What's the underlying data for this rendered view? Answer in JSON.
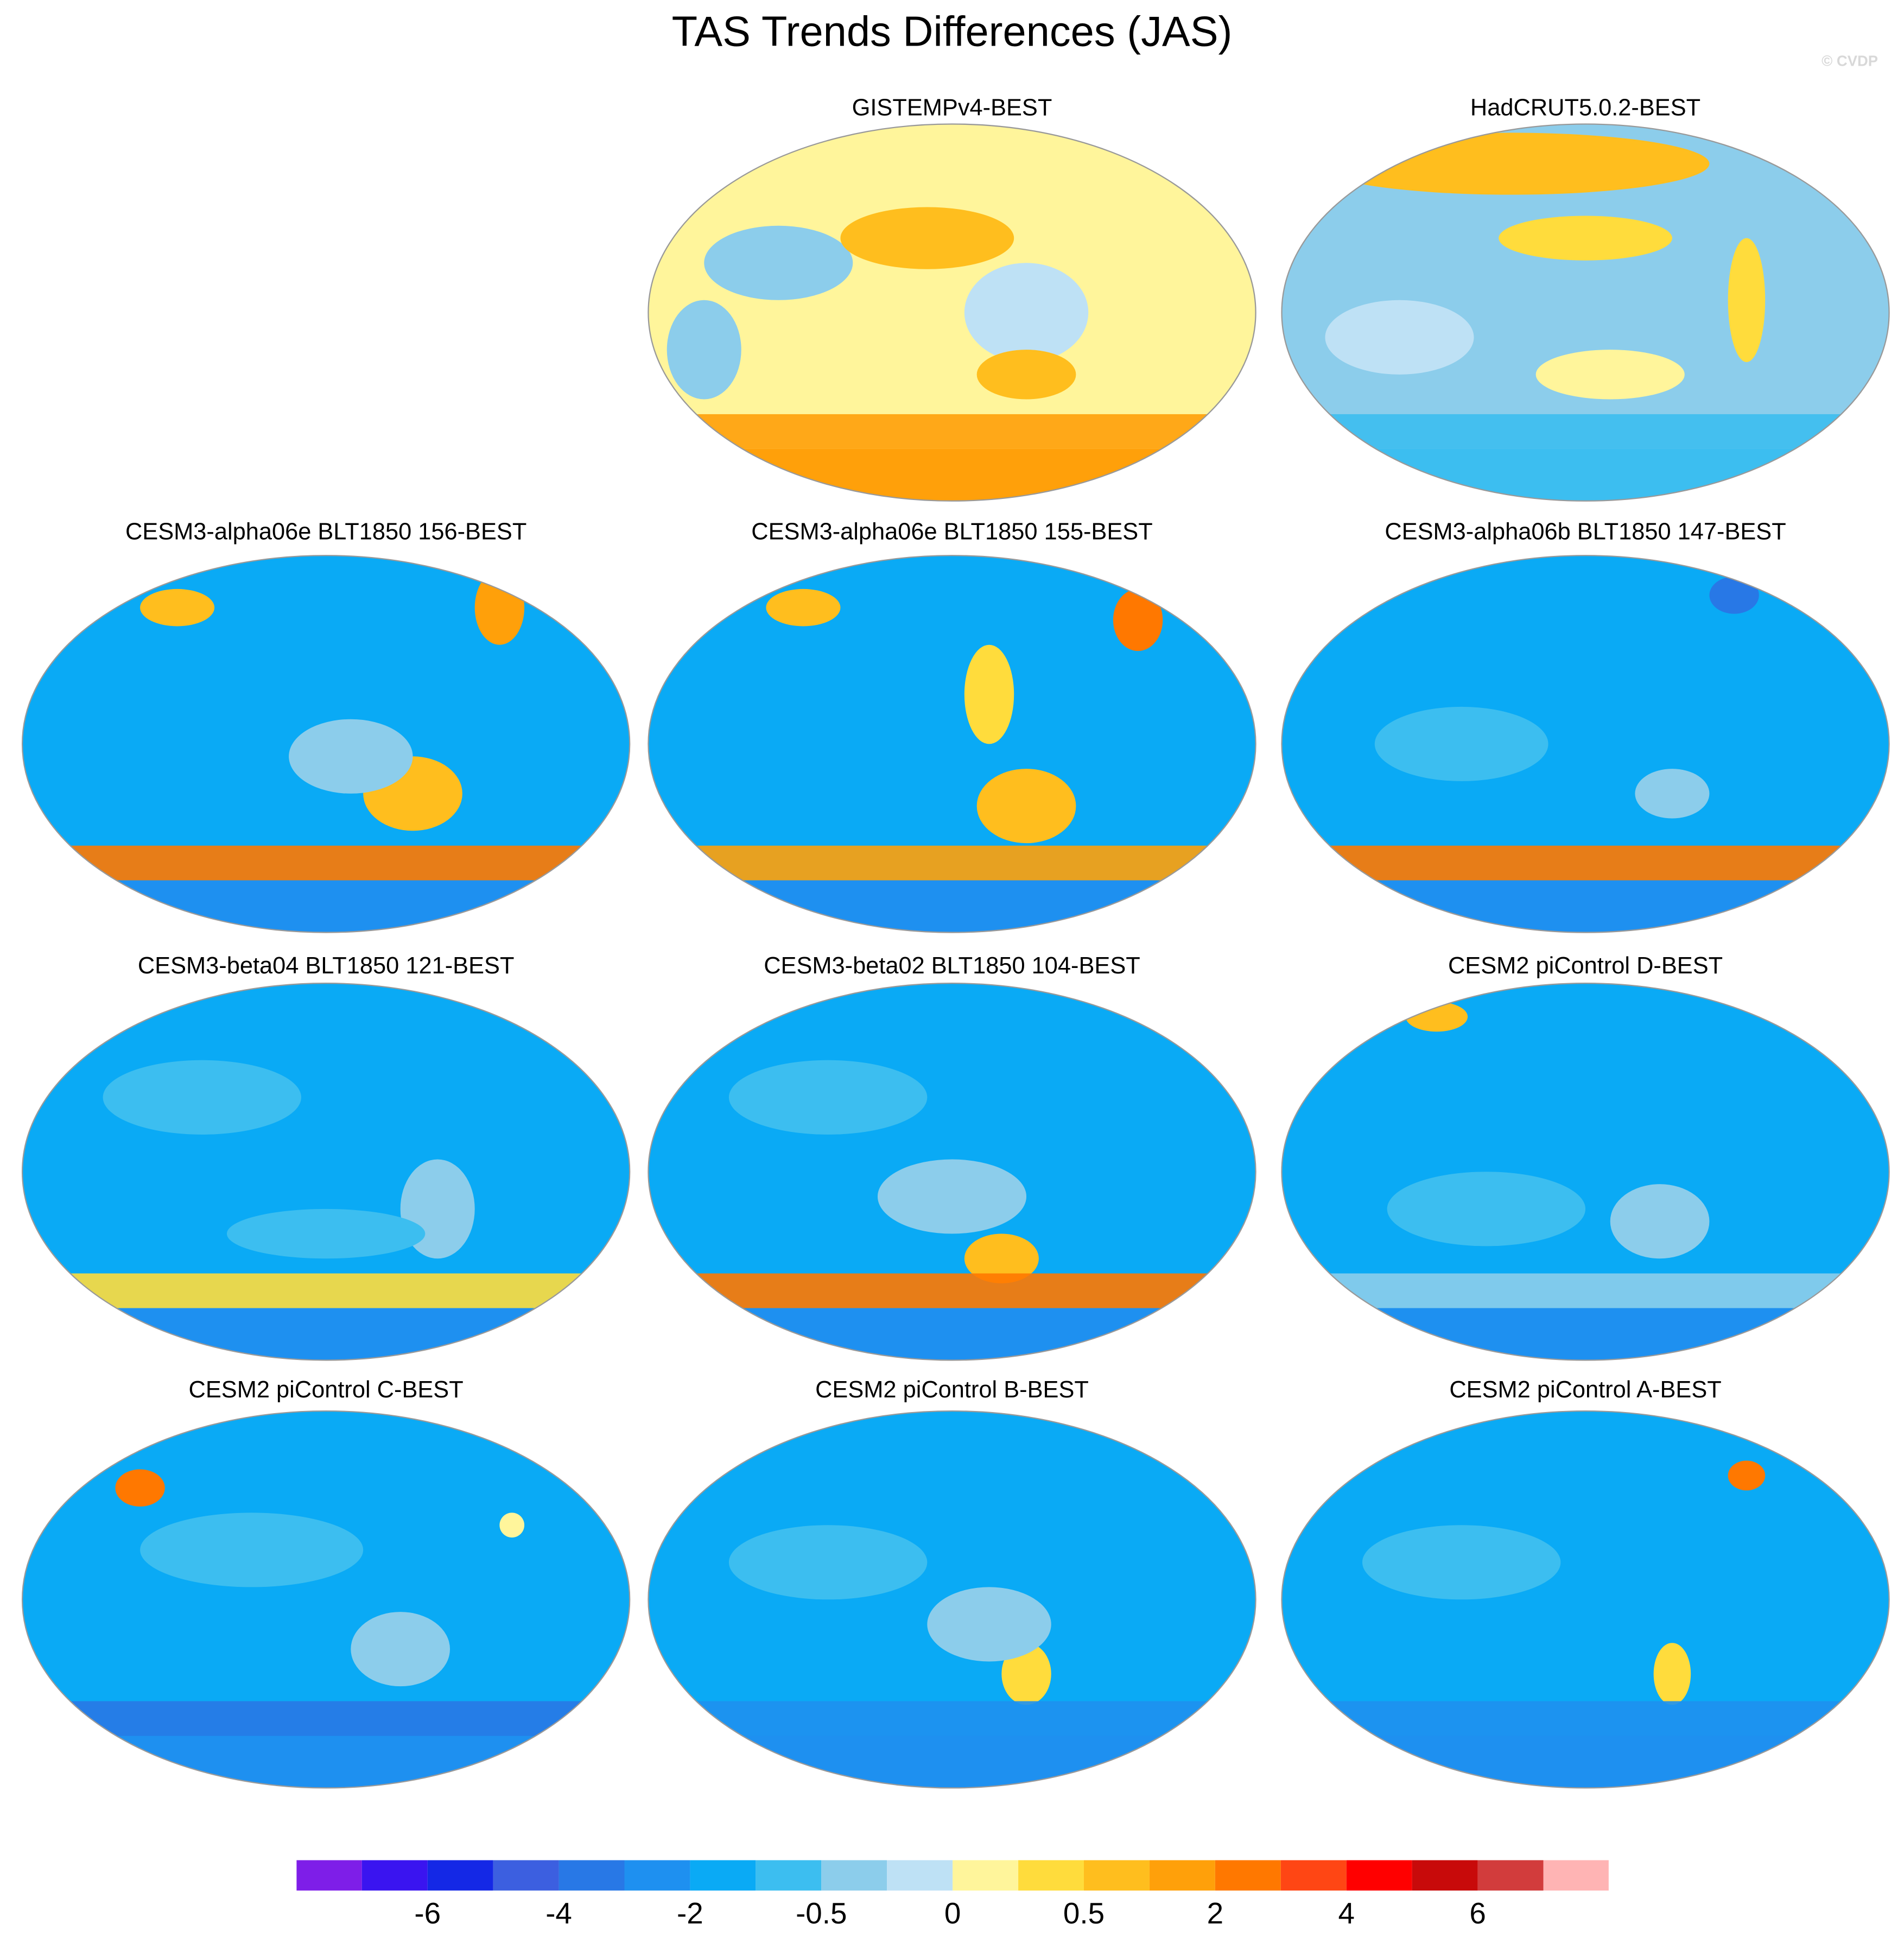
{
  "title": "TAS Trends Differences (JAS)",
  "watermark": "© CVDP",
  "panels": [
    {
      "title": "GISTEMPv4-BEST"
    },
    {
      "title": "HadCRUT5.0.2-BEST"
    },
    {
      "title": "CESM3-alpha06e BLT1850 156-BEST"
    },
    {
      "title": "CESM3-alpha06e BLT1850 155-BEST"
    },
    {
      "title": "CESM3-alpha06b BLT1850 147-BEST"
    },
    {
      "title": "CESM3-beta04 BLT1850 121-BEST"
    },
    {
      "title": "CESM3-beta02 BLT1850 104-BEST"
    },
    {
      "title": "CESM2 piControl D-BEST"
    },
    {
      "title": "CESM2 piControl C-BEST"
    },
    {
      "title": "CESM2 piControl B-BEST"
    },
    {
      "title": "CESM2 piControl A-BEST"
    }
  ],
  "colorbar": {
    "colors": [
      "#7e1ee8",
      "#3a14f0",
      "#1428e6",
      "#3c5fe0",
      "#2878e6",
      "#1e90f0",
      "#0aaaf5",
      "#3cbef0",
      "#8ccdeb",
      "#bee1f5",
      "#fff59b",
      "#ffdc3c",
      "#ffbe1e",
      "#ffa00a",
      "#ff7800",
      "#ff4614",
      "#ff0000",
      "#c80a0a",
      "#d23c3c",
      "#ffb4b4"
    ],
    "ticks": [
      -6,
      -4,
      -2,
      -0.5,
      0,
      0.5,
      2,
      4,
      6
    ]
  }
}
